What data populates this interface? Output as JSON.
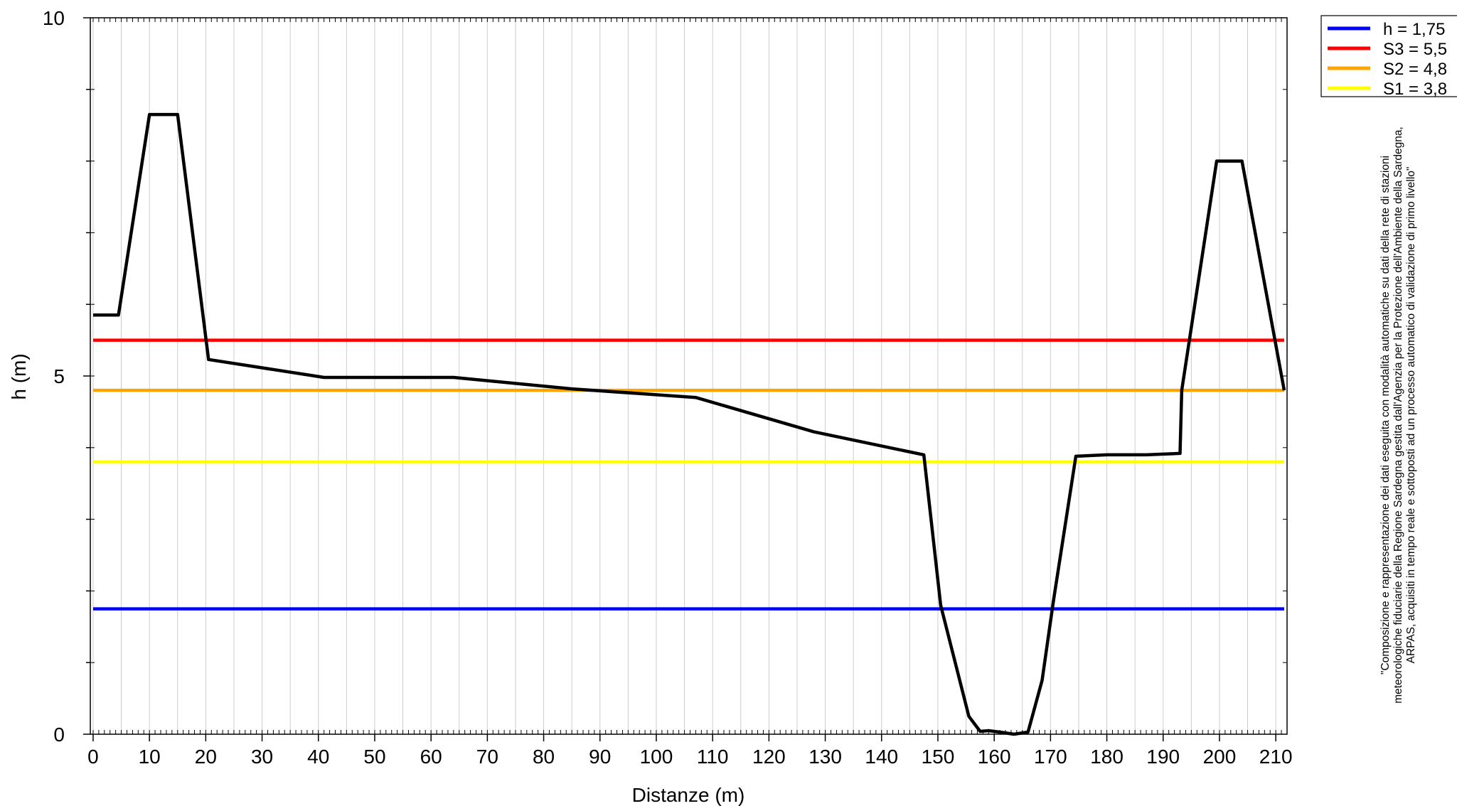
{
  "chart_data": {
    "type": "line",
    "xlabel": "Distanze (m)",
    "ylabel": "h (m)",
    "xlim": [
      -0.5,
      212
    ],
    "ylim": [
      0,
      10
    ],
    "x_ticks": [
      0,
      10,
      20,
      30,
      40,
      50,
      60,
      70,
      80,
      90,
      100,
      110,
      120,
      130,
      140,
      150,
      160,
      170,
      180,
      190,
      200,
      210
    ],
    "y_ticks": [
      0,
      5,
      10
    ],
    "grid": "vertical",
    "legend_position": "top-right",
    "profile": {
      "color": "#000000",
      "points": [
        [
          0,
          5.85
        ],
        [
          4.5,
          5.85
        ],
        [
          10,
          8.65
        ],
        [
          15,
          8.65
        ],
        [
          20.5,
          5.23
        ],
        [
          41,
          4.98
        ],
        [
          64,
          4.98
        ],
        [
          85,
          4.82
        ],
        [
          107,
          4.7
        ],
        [
          128,
          4.22
        ],
        [
          147.5,
          3.9
        ],
        [
          150.5,
          1.8
        ],
        [
          155.5,
          0.25
        ],
        [
          157.5,
          0.04
        ],
        [
          159,
          0.05
        ],
        [
          161,
          0.03
        ],
        [
          163.5,
          0.0
        ],
        [
          166,
          0.03
        ],
        [
          168.5,
          0.75
        ],
        [
          170.5,
          1.85
        ],
        [
          174.5,
          3.88
        ],
        [
          180,
          3.9
        ],
        [
          187,
          3.9
        ],
        [
          193,
          3.92
        ],
        [
          193.3,
          4.8
        ],
        [
          199.5,
          8.0
        ],
        [
          204,
          8.0
        ],
        [
          211.5,
          4.8
        ]
      ]
    },
    "series": [
      {
        "name": "h = 1,75",
        "value": 1.75,
        "color": "#0000ff"
      },
      {
        "name": "S3 = 5,5",
        "value": 5.5,
        "color": "#ff0000"
      },
      {
        "name": "S2 = 4,8",
        "value": 4.8,
        "color": "#ffa500"
      },
      {
        "name": "S1 = 3,8",
        "value": 3.8,
        "color": "#ffff00"
      }
    ],
    "note_lines": [
      "\"Composizione e rappresentazione dei dati eseguita con modalità automatiche su dati della rete di stazioni",
      "meteorologiche fiduciarie della Regione Sardegna gestita dall'Agenzia per la Protezione dell'Ambiente della Sardegna,",
      "ARPAS, acquisiti in tempo reale e sottoposti ad un processo automatico di validazione di primo livello\""
    ]
  }
}
